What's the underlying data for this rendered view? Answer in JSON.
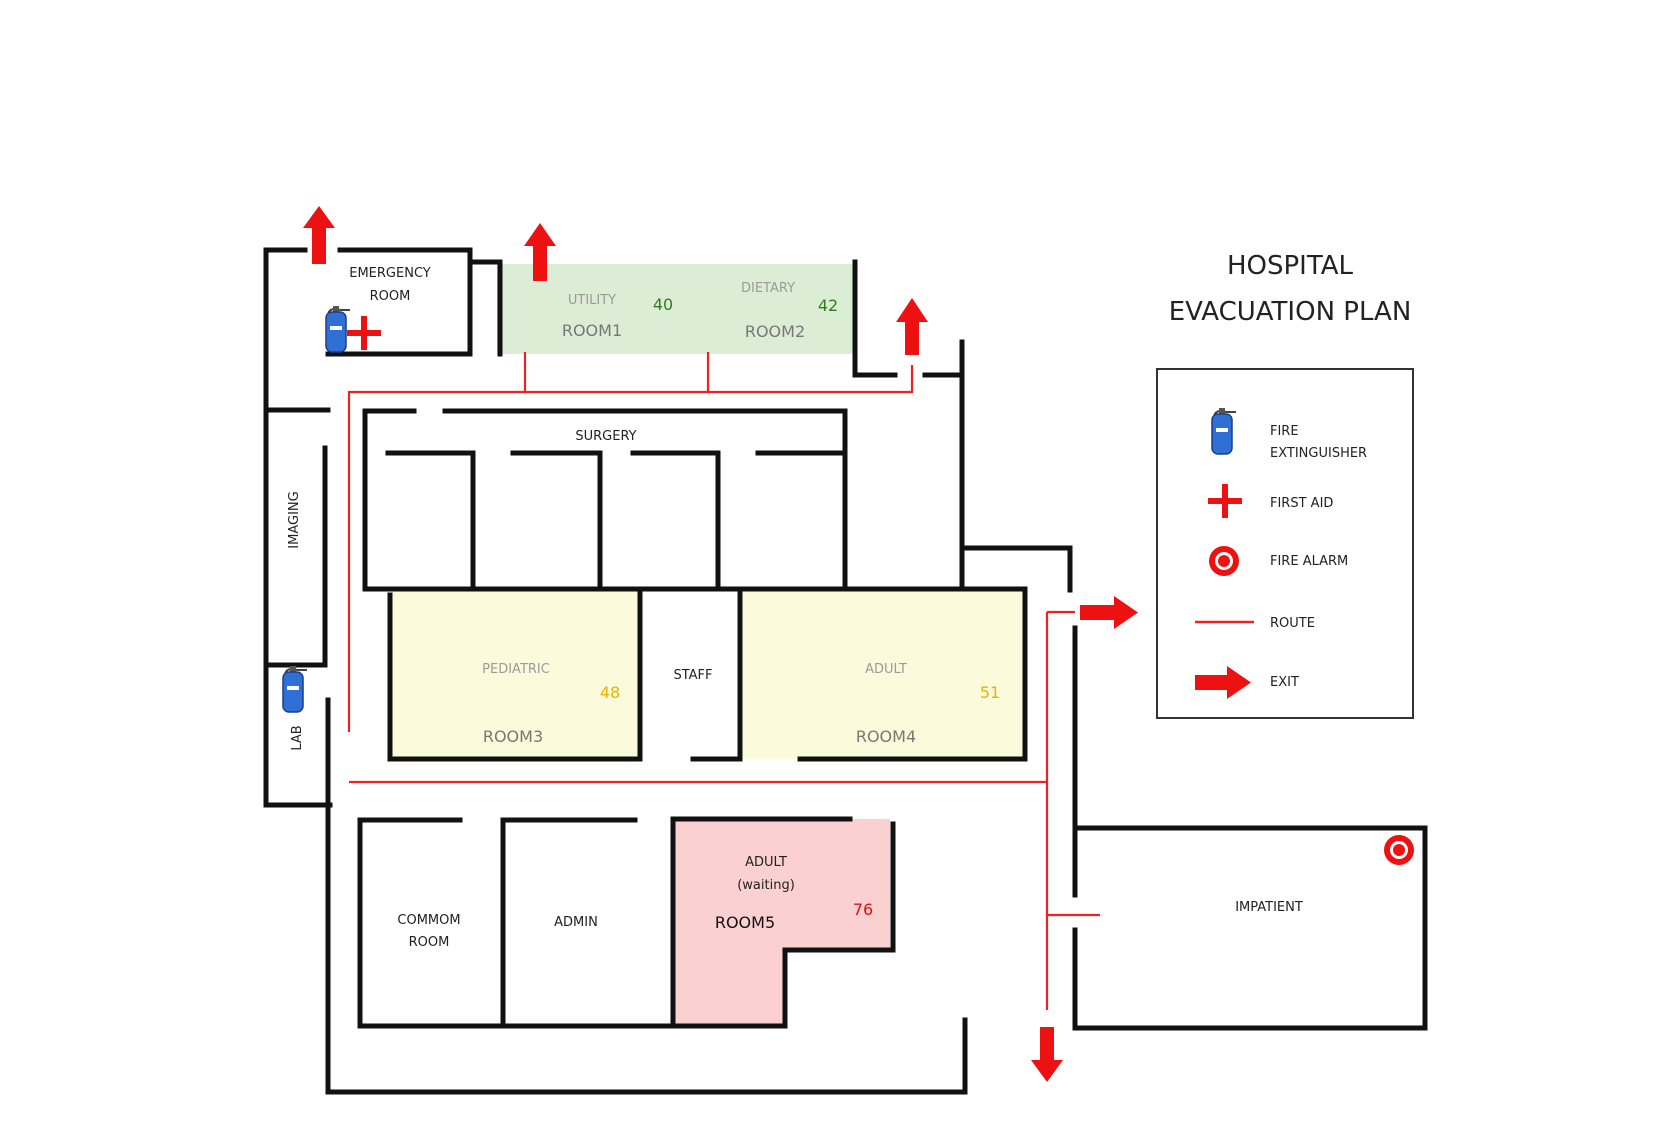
{
  "title": {
    "line1": "HOSPITAL",
    "line2": "EVACUATION PLAN"
  },
  "rooms": {
    "emergency_room": {
      "line1": "EMERGENCY",
      "line2": "ROOM"
    },
    "utility": {
      "label": "UTILITY",
      "room": "ROOM1",
      "count": "40"
    },
    "dietary": {
      "label": "DIETARY",
      "room": "ROOM2",
      "count": "42"
    },
    "surgery": {
      "label": "SURGERY"
    },
    "imaging": {
      "label": "IMAGING"
    },
    "lab": {
      "label": "LAB"
    },
    "pediatric": {
      "label": "PEDIATRIC",
      "room": "ROOM3",
      "count": "48"
    },
    "staff": {
      "label": "STAFF"
    },
    "adult": {
      "label": "ADULT",
      "room": "ROOM4",
      "count": "51"
    },
    "common_room": {
      "line1": "COMMOM",
      "line2": "ROOM"
    },
    "admin": {
      "label": "ADMIN"
    },
    "adult_waiting": {
      "line1": "ADULT",
      "line2": "(waiting)",
      "room": "ROOM5",
      "count": "76"
    },
    "impatient": {
      "label": "IMPATIENT"
    }
  },
  "legend": {
    "items": [
      {
        "icon": "fire-extinguisher-icon",
        "line1": "FIRE",
        "line2": "EXTINGUISHER"
      },
      {
        "icon": "first-aid-icon",
        "line1": "FIRST AID"
      },
      {
        "icon": "fire-alarm-icon",
        "line1": "FIRE ALARM"
      },
      {
        "icon": "route-line-icon",
        "line1": "ROUTE"
      },
      {
        "icon": "exit-arrow-icon",
        "line1": "EXIT"
      }
    ]
  },
  "colors": {
    "wall": "#111111",
    "route": "#ee2222",
    "exit": "#ee1111",
    "green_zone": "#dcedd6",
    "yellow_zone": "#fbfbdc",
    "red_zone": "#fbd0d0",
    "count_green": "#2f7d1e",
    "count_yellow": "#e6b400",
    "count_red": "#dd1111",
    "extinguisher": "#2f6fd6"
  }
}
